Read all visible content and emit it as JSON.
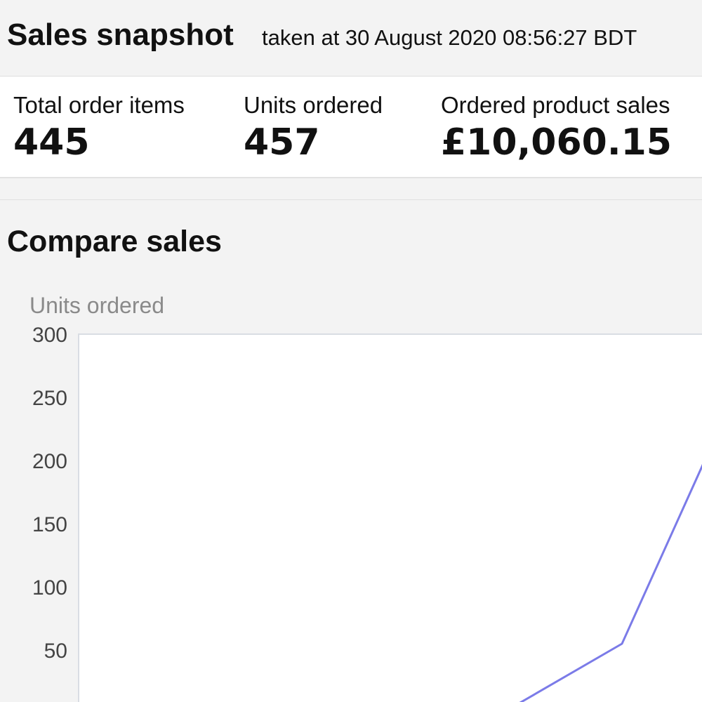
{
  "header": {
    "title": "Sales snapshot",
    "subtitle": "taken at 30 August 2020 08:56:27 BDT"
  },
  "metrics": [
    {
      "label": "Total order items",
      "value": "445"
    },
    {
      "label": "Units ordered",
      "value": "457"
    },
    {
      "label": "Ordered product sales",
      "value": "£10,060.15"
    }
  ],
  "compare": {
    "title": "Compare sales"
  },
  "chart_data": {
    "type": "line",
    "ylabel": "Units ordered",
    "ylim": [
      0,
      300
    ],
    "yticks": [
      "300",
      "250",
      "200",
      "150",
      "100",
      "50"
    ],
    "grid": false,
    "series": [
      {
        "color": "#7b7be8",
        "points": [
          [
            0.0,
            0
          ],
          [
            0.67,
            0
          ],
          [
            0.86,
            55
          ],
          [
            1.0,
            210
          ]
        ]
      }
    ]
  },
  "colors": {
    "series_line": "#7b7be8",
    "plot_background": "#ffffff",
    "page_background": "#f3f3f3"
  }
}
